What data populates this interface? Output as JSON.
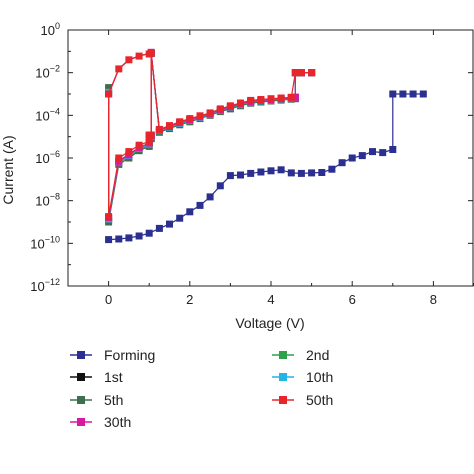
{
  "chart_data": {
    "type": "scatter",
    "xlabel": "Voltage (V)",
    "ylabel": "Current (A)",
    "xlim": [
      -1,
      9
    ],
    "ylim": [
      1e-12,
      1
    ],
    "yscale": "log",
    "grid": false,
    "legend_position": "bottom",
    "x_ticks": [
      0,
      2,
      4,
      6,
      8
    ],
    "x_tick_labels": [
      "0",
      "2",
      "4",
      "6",
      "8"
    ],
    "y_ticks": [
      1e-12,
      1e-10,
      1e-08,
      1e-06,
      0.0001,
      0.01,
      1
    ],
    "y_tick_labels": [
      {
        "base": "10",
        "exp": "−12"
      },
      {
        "base": "10",
        "exp": "−10"
      },
      {
        "base": "10",
        "exp": "−8"
      },
      {
        "base": "10",
        "exp": "−6"
      },
      {
        "base": "10",
        "exp": "−4"
      },
      {
        "base": "10",
        "exp": "−2"
      },
      {
        "base": "10",
        "exp": "0"
      }
    ],
    "series": [
      {
        "name": "Forming",
        "color": "#2b2f8f",
        "marker": "square",
        "x": [
          0,
          0.25,
          0.5,
          0.75,
          1.0,
          1.25,
          1.5,
          1.75,
          2.0,
          2.25,
          2.5,
          2.75,
          3.0,
          3.25,
          3.5,
          3.75,
          4.0,
          4.25,
          4.5,
          4.75,
          5.0,
          5.25,
          5.5,
          5.75,
          6.0,
          6.25,
          6.5,
          6.75,
          7.0,
          7.0,
          7.25,
          7.5,
          7.75
        ],
        "y": [
          1.5e-10,
          1.6e-10,
          1.8e-10,
          2.2e-10,
          3e-10,
          5e-10,
          8e-10,
          1.5e-09,
          3e-09,
          6e-09,
          1.5e-08,
          5e-08,
          1.5e-07,
          1.6e-07,
          1.9e-07,
          2.2e-07,
          2.5e-07,
          2.8e-07,
          2e-07,
          1.9e-07,
          2e-07,
          2.1e-07,
          3e-07,
          6e-07,
          1e-06,
          1.3e-06,
          2e-06,
          1.8e-06,
          2.5e-06,
          0.001,
          0.001,
          0.001,
          0.001
        ]
      },
      {
        "name": "1st",
        "color": "#111111",
        "marker": "square",
        "x": [
          0,
          0,
          0.25,
          0.5,
          0.75,
          1.0,
          1.0,
          1.05,
          1.05,
          1.25,
          1.5,
          1.75,
          2.0,
          2.25,
          2.5,
          2.75,
          3.0,
          3.25,
          3.5,
          3.75,
          4.0,
          4.25,
          4.5,
          4.6,
          4.6,
          4.75,
          5.0
        ],
        "y": [
          0.001,
          1.5e-09,
          7e-07,
          1.5e-06,
          3e-06,
          5e-06,
          1e-05,
          1e-05,
          0.08,
          2e-05,
          3e-05,
          4.5e-05,
          6e-05,
          8.5e-05,
          0.00012,
          0.00018,
          0.00025,
          0.00035,
          0.00045,
          0.0005,
          0.00055,
          0.0006,
          0.00065,
          0.0007,
          0.01,
          0.01,
          0.01
        ]
      },
      {
        "name": "2nd",
        "color": "#2ea14a",
        "marker": "square",
        "x": [
          0,
          0,
          0.25,
          0.5,
          0.75,
          1.0,
          1.0,
          1.05,
          1.05,
          1.25,
          1.5,
          1.75,
          2.0,
          2.25,
          2.5,
          2.75,
          3.0,
          3.25,
          3.5,
          3.75,
          4.0,
          4.25,
          4.5,
          4.6,
          4.6,
          4.75,
          5.0
        ],
        "y": [
          0.0015,
          1.2e-09,
          6e-07,
          1.2e-06,
          2.5e-06,
          4e-06,
          9e-06,
          9e-06,
          0.08,
          1.8e-05,
          2.6e-05,
          4e-05,
          5.5e-05,
          7.5e-05,
          0.00011,
          0.00016,
          0.00022,
          0.0003,
          0.0004,
          0.00045,
          0.0005,
          0.00055,
          0.0006,
          0.00065,
          0.01,
          0.01,
          0.01
        ]
      },
      {
        "name": "5th",
        "color": "#3f6e4f",
        "marker": "square",
        "x": [
          0,
          0,
          0.25,
          0.5,
          0.75,
          1.0,
          1.0,
          1.05,
          1.05,
          1.25,
          1.5,
          1.75,
          2.0,
          2.25,
          2.5,
          2.75,
          3.0,
          3.25,
          3.5,
          3.75,
          4.0,
          4.25,
          4.5,
          4.6,
          4.6,
          4.75,
          5.0
        ],
        "y": [
          0.002,
          1e-09,
          5e-07,
          1e-06,
          2.2e-06,
          3.5e-06,
          8e-06,
          8e-06,
          0.08,
          1.6e-05,
          2.4e-05,
          3.6e-05,
          5e-05,
          7e-05,
          0.0001,
          0.00015,
          0.0002,
          0.00028,
          0.00037,
          0.00042,
          0.00047,
          0.00052,
          0.00057,
          0.0006,
          0.01,
          0.01,
          0.01
        ]
      },
      {
        "name": "10th",
        "color": "#25b4e6",
        "marker": "square",
        "x": [
          0,
          0,
          0.25,
          0.5,
          0.75,
          1.0,
          1.0,
          1.05,
          1.05,
          1.25,
          1.5,
          1.75,
          2.0,
          2.25,
          2.5,
          2.75,
          3.0,
          3.25,
          3.5,
          3.75,
          4.0,
          4.25,
          4.5,
          4.6,
          4.6,
          4.75,
          5.0
        ],
        "y": [
          0.0012,
          1.4e-09,
          6.5e-07,
          1.3e-06,
          2.8e-06,
          4.5e-06,
          1e-05,
          1e-05,
          0.08,
          1.9e-05,
          2.8e-05,
          4.2e-05,
          5.8e-05,
          8e-05,
          0.000115,
          0.00017,
          0.00024,
          0.00032,
          0.00042,
          0.00048,
          0.00053,
          0.00058,
          0.00063,
          0.00068,
          0.01,
          0.01,
          0.01
        ]
      },
      {
        "name": "30th",
        "color": "#d91aa0",
        "marker": "square",
        "x": [
          0,
          0,
          0.25,
          0.5,
          0.75,
          1.0,
          1.0,
          1.05,
          1.05,
          1.25,
          1.5,
          1.75,
          2.0,
          2.25,
          2.5,
          2.75,
          3.0,
          3.25,
          3.5,
          3.75,
          4.0,
          4.25,
          4.5,
          4.6,
          4.6,
          4.75,
          5.0
        ],
        "y": [
          0.001,
          1.6e-09,
          7e-07,
          1.4e-06,
          3e-06,
          5e-06,
          1.1e-05,
          1.1e-05,
          0.09,
          2e-05,
          3e-05,
          4.5e-05,
          6.2e-05,
          8.5e-05,
          0.00012,
          0.00018,
          0.00025,
          0.00034,
          0.00044,
          0.0005,
          0.00055,
          0.0006,
          0.00065,
          0.0007,
          0.01,
          0.01,
          0.01
        ]
      },
      {
        "name": "50th",
        "color": "#e6262b",
        "marker": "square",
        "x": [
          0,
          0,
          0.25,
          0.5,
          0.75,
          1.0,
          1.0,
          1.05,
          1.05,
          1.25,
          1.5,
          1.75,
          2.0,
          2.25,
          2.5,
          2.75,
          3.0,
          3.25,
          3.5,
          3.75,
          4.0,
          4.25,
          4.5,
          4.6,
          4.75,
          5.0,
          0.25,
          0.5,
          0.75,
          1.0
        ],
        "y": [
          0.001,
          1.8e-09,
          1e-06,
          2e-06,
          4e-06,
          6e-06,
          1.2e-05,
          1.2e-05,
          0.08,
          2.2e-05,
          3.3e-05,
          5e-05,
          7e-05,
          9.5e-05,
          0.00013,
          0.0002,
          0.00028,
          0.00038,
          0.0005,
          0.00055,
          0.0006,
          0.00065,
          0.0007,
          0.01,
          0.01,
          0.01,
          0.015,
          0.04,
          0.06,
          0.075
        ]
      }
    ]
  }
}
